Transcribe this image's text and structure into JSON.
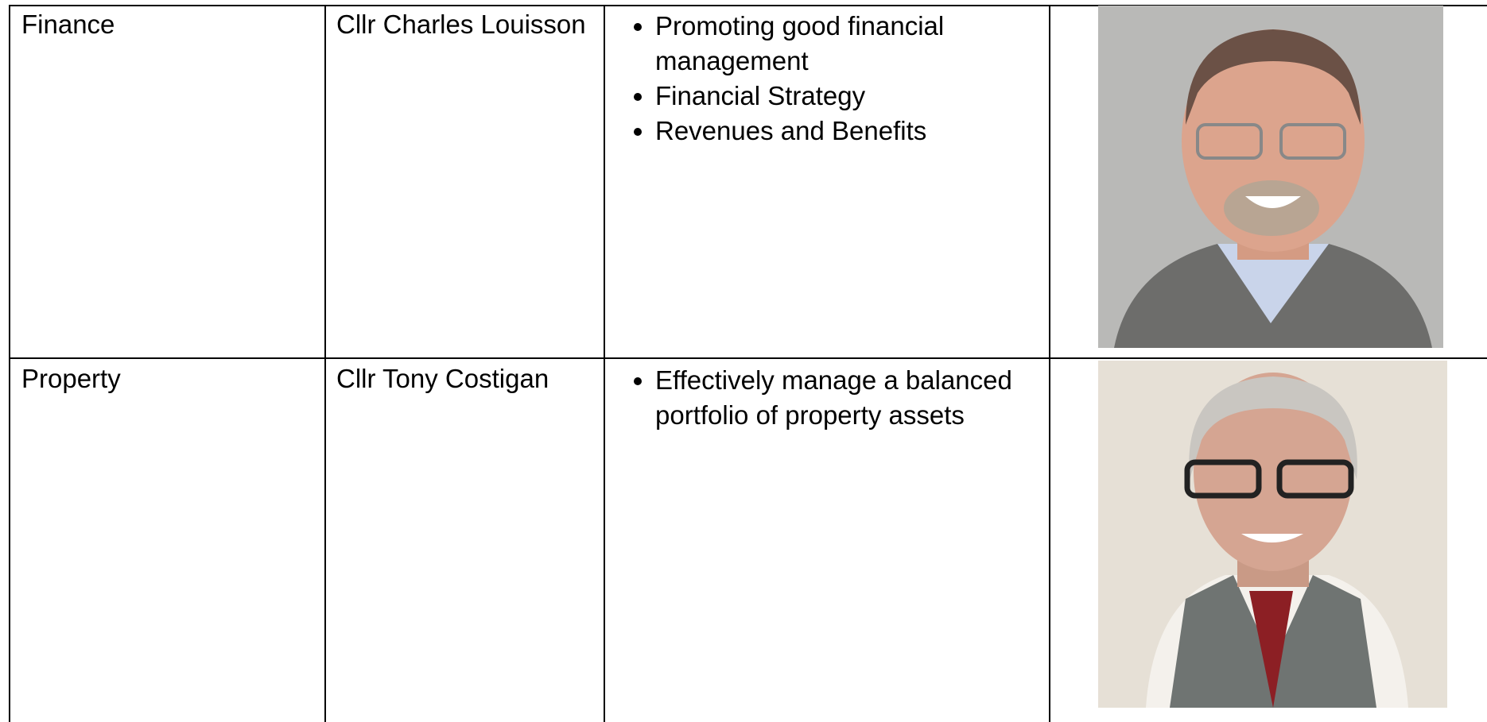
{
  "table": {
    "rows": [
      {
        "portfolio": "Finance",
        "member": "Cllr Charles Louisson",
        "responsibilities": [
          "Promoting good financial management",
          "Financial Strategy",
          "Revenues and Benefits"
        ]
      },
      {
        "portfolio": "Property",
        "member": "Cllr Tony Costigan",
        "responsibilities": [
          "Effectively manage a balanced portfolio of property assets"
        ]
      }
    ]
  }
}
